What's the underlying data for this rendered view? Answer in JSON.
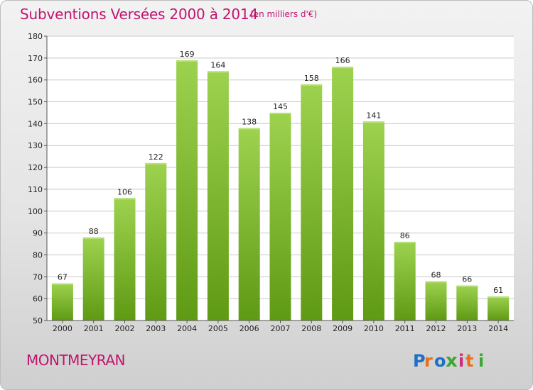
{
  "page": {
    "title": "Subventions Versées 2000 à 2014",
    "subtitle": "(en milliers d'€)",
    "commune": "MONTMEYRAN",
    "brand": "Proxiti"
  },
  "colors": {
    "accent": "#c0146e",
    "bar_top": "#9dd24f",
    "bar_bottom": "#5f9a14",
    "grid": "#c8c8c8",
    "brand_letters": [
      "#1f6fc4",
      "#e8701a",
      "#1f6fc4",
      "#3aa832",
      "#d12a7a",
      "#e8701a",
      "#3aa832"
    ]
  },
  "chart_data": {
    "type": "bar",
    "title": "Subventions Versées 2000 à 2014",
    "subtitle": "(en milliers d'€)",
    "categories": [
      "2000",
      "2001",
      "2002",
      "2003",
      "2004",
      "2005",
      "2006",
      "2007",
      "2008",
      "2009",
      "2010",
      "2011",
      "2012",
      "2013",
      "2014"
    ],
    "values": [
      67,
      88,
      106,
      122,
      169,
      164,
      138,
      145,
      158,
      166,
      141,
      86,
      68,
      66,
      61
    ],
    "ylim": [
      50,
      180
    ],
    "yticks": [
      50,
      60,
      70,
      80,
      90,
      100,
      110,
      120,
      130,
      140,
      150,
      160,
      170,
      180
    ],
    "grid": true,
    "xlabel": "",
    "ylabel": ""
  }
}
